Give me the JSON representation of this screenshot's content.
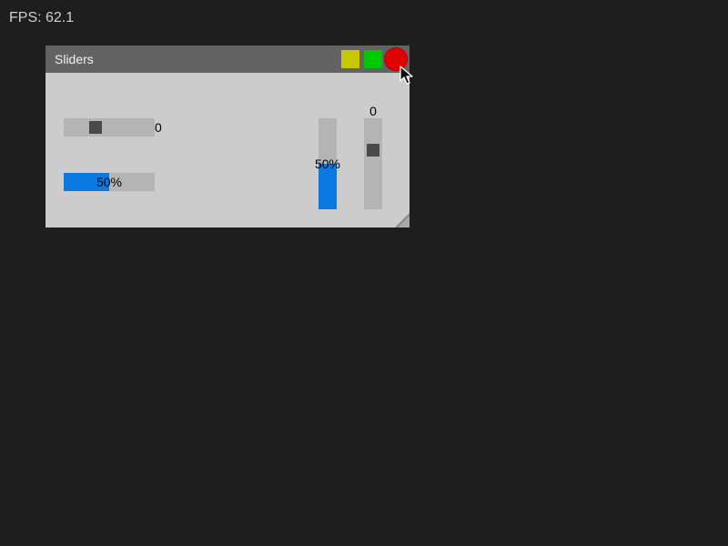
{
  "fps": {
    "label": "FPS: 62.1"
  },
  "window": {
    "title": "Sliders",
    "buttons": {
      "minimize_icon": "yellow-square-icon",
      "maximize_icon": "green-square-icon",
      "close_icon": "red-circle-icon"
    }
  },
  "h_slider": {
    "value_text": "0",
    "position_fraction": 0.33
  },
  "h_progress": {
    "label": "50%",
    "fraction": 0.5
  },
  "v_progress": {
    "label": "50%",
    "fraction": 0.5
  },
  "v_slider": {
    "value_text": "0",
    "position_fraction": 0.33
  },
  "colors": {
    "background": "#1e1e1e",
    "window_body": "#cccccc",
    "titlebar": "#636363",
    "track": "#b4b4b4",
    "thumb": "#4a4a4a",
    "progress_fill": "#0a7ae2",
    "minimize": "#c8c800",
    "maximize": "#00c800",
    "close": "#e00000"
  }
}
